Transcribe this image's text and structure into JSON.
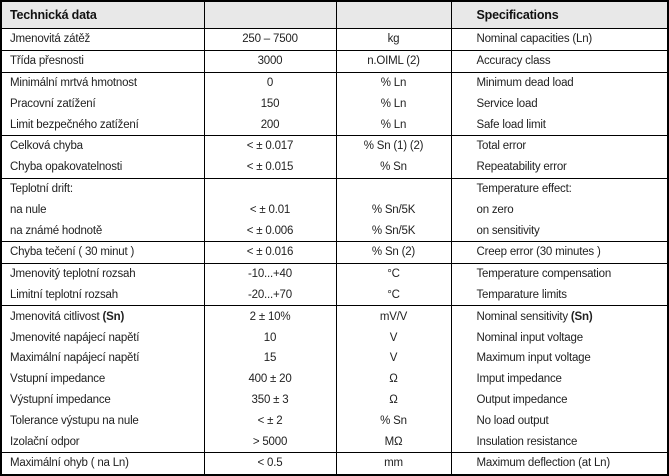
{
  "header": {
    "left_title": "Technická data",
    "right_title": "Specifications"
  },
  "colors": {
    "header_background": "#e8e8e8",
    "border": "#000000",
    "text": "#222222"
  },
  "table": {
    "columns": [
      "czech_label",
      "value",
      "unit",
      "english_label"
    ]
  },
  "rows": [
    {
      "czech": "Jmenovitá zátěž",
      "czech_bold": "",
      "value": "250 – 7500",
      "unit": "kg",
      "en": "Nominal capacities (Ln)",
      "en_bold": "",
      "group_end": true
    },
    {
      "czech": "Třída přesnosti",
      "czech_bold": "",
      "value": "3000",
      "unit": "n.OIML (2)",
      "en": "Accuracy class",
      "en_bold": "",
      "group_end": true
    },
    {
      "czech": "Minimální mrtvá hmotnost",
      "czech_bold": "",
      "value": "0",
      "unit": "% Ln",
      "en": "Minimum dead load",
      "en_bold": "",
      "group_end": false
    },
    {
      "czech": "Pracovní zatížení",
      "czech_bold": "",
      "value": "150",
      "unit": "% Ln",
      "en": "Service load",
      "en_bold": "",
      "group_end": false
    },
    {
      "czech": "Limit bezpečného zatížení",
      "czech_bold": "",
      "value": "200",
      "unit": "% Ln",
      "en": "Safe load limit",
      "en_bold": "",
      "group_end": true
    },
    {
      "czech": "Celková chyba",
      "czech_bold": "",
      "value": "< ± 0.017",
      "unit": "% Sn (1) (2)",
      "en": "Total error",
      "en_bold": "",
      "group_end": false
    },
    {
      "czech": "Chyba opakovatelnosti",
      "czech_bold": "",
      "value": "< ± 0.015",
      "unit": "% Sn",
      "en": "Repeatability error",
      "en_bold": "",
      "group_end": true
    },
    {
      "czech": "Teplotní drift:",
      "czech_bold": "",
      "value": "",
      "unit": "",
      "en": "Temperature effect:",
      "en_bold": "",
      "group_end": false
    },
    {
      "czech": "na nule",
      "czech_bold": "",
      "value": "< ± 0.01",
      "unit": "% Sn/5K",
      "en": "on zero",
      "en_bold": "",
      "group_end": false
    },
    {
      "czech": "na známé hodnotě",
      "czech_bold": "",
      "value": "< ± 0.006",
      "unit": "% Sn/5K",
      "en": "on sensitivity",
      "en_bold": "",
      "group_end": true
    },
    {
      "czech": "Chyba tečení ( 30 minut )",
      "czech_bold": "",
      "value": "< ± 0.016",
      "unit": "% Sn (2)",
      "en": "Creep error (30 minutes )",
      "en_bold": "",
      "group_end": true
    },
    {
      "czech": "Jmenovitý teplotní rozsah",
      "czech_bold": "",
      "value": "-10...+40",
      "unit": "°C",
      "en": "Temperature compensation",
      "en_bold": "",
      "group_end": false
    },
    {
      "czech": "Limitní teplotní rozsah",
      "czech_bold": "",
      "value": "-20...+70",
      "unit": "°C",
      "en": "Temparature limits",
      "en_bold": "",
      "group_end": true
    },
    {
      "czech": "Jmenovitá citlivost ",
      "czech_bold": "(Sn)",
      "value": "2 ± 10%",
      "unit": "mV/V",
      "en": "Nominal sensitivity ",
      "en_bold": "(Sn)",
      "group_end": false
    },
    {
      "czech": "Jmenovité napájecí napětí",
      "czech_bold": "",
      "value": "10",
      "unit": "V",
      "en": "Nominal input voltage",
      "en_bold": "",
      "group_end": false
    },
    {
      "czech": "Maximální napájecí napětí",
      "czech_bold": "",
      "value": "15",
      "unit": "V",
      "en": "Maximum input voltage",
      "en_bold": "",
      "group_end": false
    },
    {
      "czech": "Vstupní impedance",
      "czech_bold": "",
      "value": "400 ± 20",
      "unit": "Ω",
      "en": "Imput impedance",
      "en_bold": "",
      "group_end": false
    },
    {
      "czech": "Výstupní impedance",
      "czech_bold": "",
      "value": "350 ± 3",
      "unit": "Ω",
      "en": "Output impedance",
      "en_bold": "",
      "group_end": false
    },
    {
      "czech": "Tolerance výstupu na nule",
      "czech_bold": "",
      "value": "< ± 2",
      "unit": "% Sn",
      "en": "No load output",
      "en_bold": "",
      "group_end": false
    },
    {
      "czech": "Izolační odpor",
      "czech_bold": "",
      "value": "> 5000",
      "unit": "MΩ",
      "en": "Insulation resistance",
      "en_bold": "",
      "group_end": true
    },
    {
      "czech": "Maximální ohyb ( na Ln)",
      "czech_bold": "",
      "value": "< 0.5",
      "unit": "mm",
      "en": "Maximum deflection (at Ln)",
      "en_bold": "",
      "group_end": false
    }
  ]
}
